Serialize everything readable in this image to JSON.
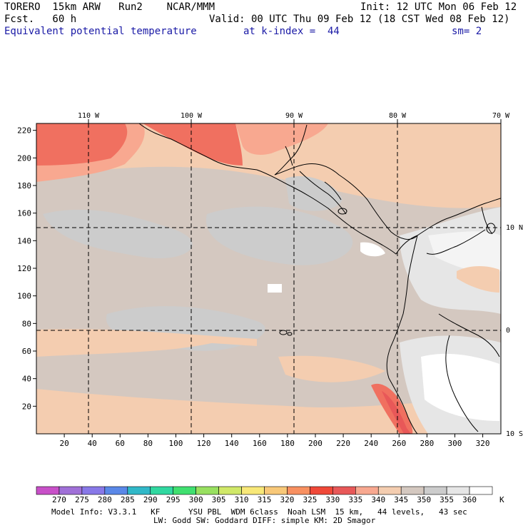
{
  "header": {
    "model": "TORERO  15km ARW   Run2    NCAR/MMM",
    "init": "Init: 12 UTC Mon 06 Feb 12",
    "fcst": "Fcst.   60 h",
    "valid": "Valid: 00 UTC Thu 09 Feb 12 (18 CST Wed 08 Feb 12)",
    "field": "Equivalent potential temperature",
    "level": "at k-index =  44",
    "smooth": "sm= 2"
  },
  "map": {
    "top_lon_labels": [
      "110 W",
      "100 W",
      "90 W",
      "80 W",
      "70 W"
    ],
    "right_lat_labels": [
      "10 N",
      "0",
      "10 S"
    ],
    "x_ticks": [
      20,
      40,
      60,
      80,
      100,
      120,
      140,
      160,
      180,
      200,
      220,
      240,
      260,
      280,
      300,
      320
    ],
    "y_ticks": [
      20,
      40,
      60,
      80,
      100,
      120,
      140,
      160,
      180,
      200,
      220
    ],
    "x_range": [
      0,
      333
    ],
    "y_range": [
      0,
      225
    ]
  },
  "colorbar": {
    "labels": [
      "270",
      "275",
      "280",
      "285",
      "290",
      "295",
      "300",
      "305",
      "310",
      "315",
      "320",
      "325",
      "330",
      "335",
      "340",
      "345",
      "350",
      "355",
      "360"
    ],
    "unit": "K",
    "colors": [
      "#c850c8",
      "#a070d8",
      "#8878e8",
      "#5a88e8",
      "#30b8c8",
      "#30d8a0",
      "#40e070",
      "#98e060",
      "#d0e868",
      "#f8e878",
      "#f8c878",
      "#f89060",
      "#f04838",
      "#e85858",
      "#f8a890",
      "#f4cdb0",
      "#d4c8c0",
      "#cccccc",
      "#e6e6e6",
      "#ffffff"
    ]
  },
  "footer": {
    "line1": "Model Info: V3.3.1   KF      YSU PBL  WDM 6class  Noah LSM  15 km,   44 levels,   43 sec",
    "line2": "LW: Godd SW: Goddard DIFF: simple KM: 2D Smagor"
  }
}
